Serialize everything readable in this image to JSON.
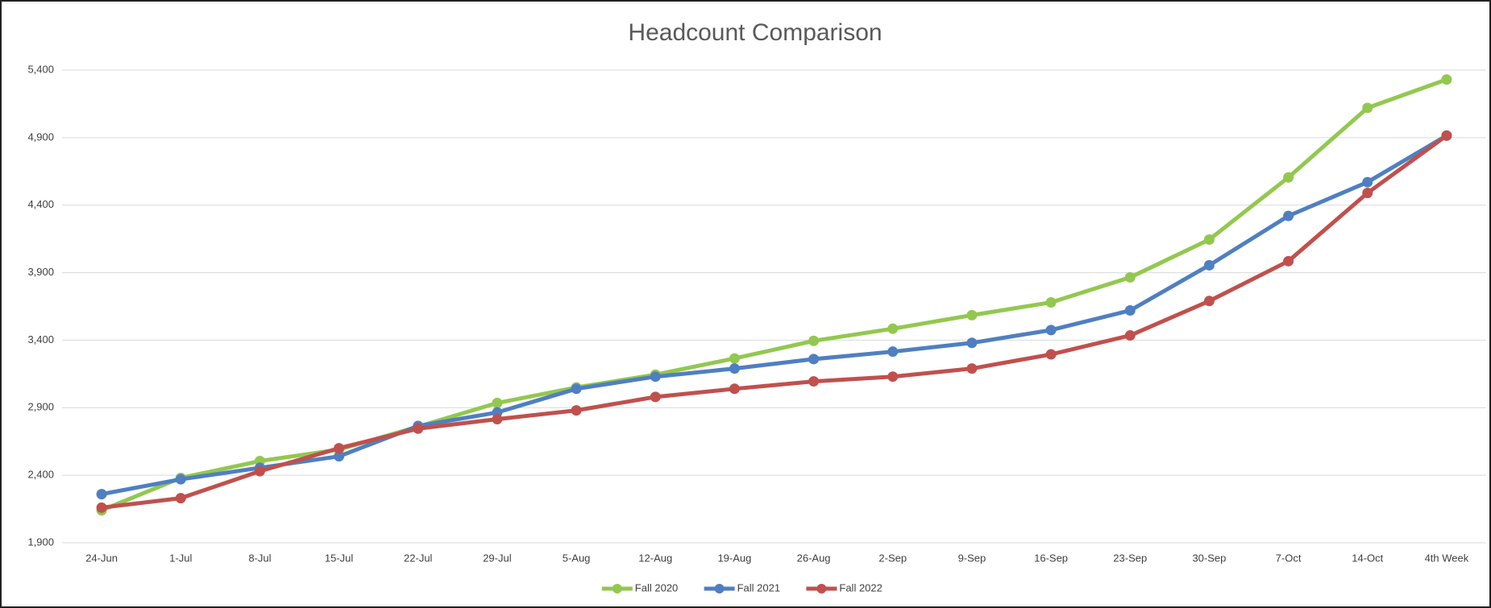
{
  "chart_data": {
    "type": "line",
    "title": "Headcount Comparison",
    "categories": [
      "24-Jun",
      "1-Jul",
      "8-Jul",
      "15-Jul",
      "22-Jul",
      "29-Jul",
      "5-Aug",
      "12-Aug",
      "19-Aug",
      "26-Aug",
      "2-Sep",
      "9-Sep",
      "16-Sep",
      "23-Sep",
      "30-Sep",
      "7-Oct",
      "14-Oct",
      "4th Week"
    ],
    "series": [
      {
        "name": "Fall 2020",
        "color": "#92c84f",
        "values": [
          2140,
          2380,
          2505,
          2590,
          2760,
          2935,
          3050,
          3145,
          3265,
          3395,
          3485,
          3585,
          3680,
          3865,
          4145,
          4605,
          5120,
          5330
        ]
      },
      {
        "name": "Fall 2021",
        "color": "#4f7fc1",
        "values": [
          2260,
          2370,
          2455,
          2540,
          2765,
          2865,
          3040,
          3130,
          3190,
          3260,
          3315,
          3380,
          3475,
          3620,
          3955,
          4320,
          4570,
          4915
        ]
      },
      {
        "name": "Fall 2022",
        "color": "#c0504d",
        "values": [
          2160,
          2230,
          2430,
          2600,
          2745,
          2815,
          2880,
          2980,
          3040,
          3095,
          3130,
          3190,
          3295,
          3435,
          3690,
          3985,
          4490,
          4915
        ]
      }
    ],
    "ylim": [
      1900,
      5400
    ],
    "yticks": [
      {
        "value": 1900,
        "label": "1,900"
      },
      {
        "value": 2400,
        "label": "2,400"
      },
      {
        "value": 2900,
        "label": "2,900"
      },
      {
        "value": 3400,
        "label": "3,400"
      },
      {
        "value": 3900,
        "label": "3,900"
      },
      {
        "value": 4400,
        "label": "4,400"
      },
      {
        "value": 4900,
        "label": "4,900"
      },
      {
        "value": 5400,
        "label": "5,400"
      }
    ],
    "grid": true,
    "legend": "bottom"
  }
}
